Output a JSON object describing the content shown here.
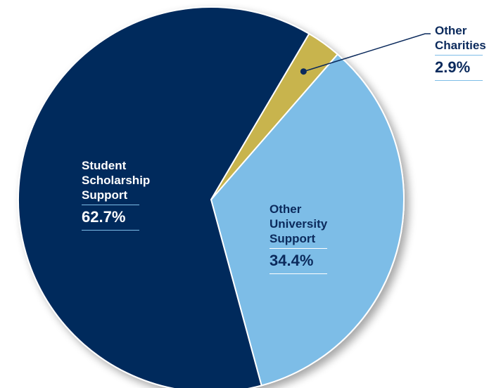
{
  "chart_data": {
    "type": "pie",
    "title": "",
    "start_angle_deg": 41,
    "colors": {
      "background": "#ffffff",
      "slice_border": "#ffffff"
    },
    "slices": [
      {
        "name_lines": [
          "Other",
          "University",
          "Support"
        ],
        "value": 34.4,
        "value_label": "34.4%",
        "color": "#7dbde7",
        "text_color": "#0b2a5c",
        "rule_color": "#ffffff"
      },
      {
        "name_lines": [
          "Student",
          "Scholarship",
          "Support"
        ],
        "value": 62.7,
        "value_label": "62.7%",
        "color": "#062a5c",
        "text_color": "#ffffff",
        "rule_color": "#7dbde7"
      },
      {
        "name_lines": [
          "Other",
          "Charities"
        ],
        "value": 2.9,
        "value_label": "2.9%",
        "color": "#c8b44d",
        "text_color": "#0b2a5c",
        "rule_color": "#7dbde7",
        "callout": true
      }
    ]
  }
}
